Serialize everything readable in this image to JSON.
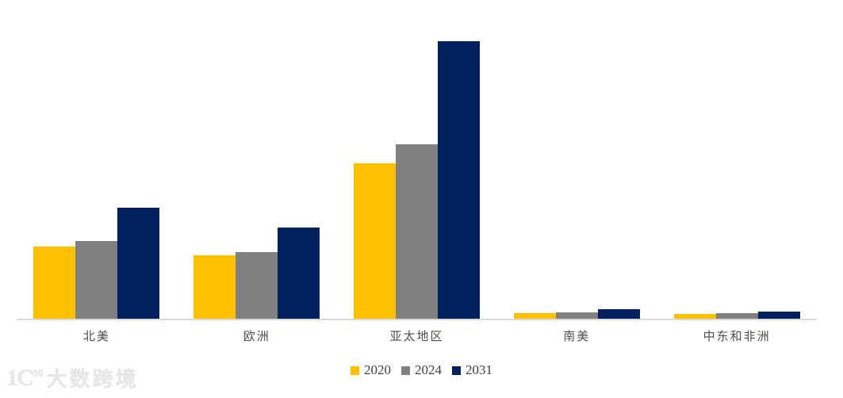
{
  "page": {
    "background": "#FFFFFF"
  },
  "chart_data": {
    "type": "bar",
    "title": "",
    "xlabel": "",
    "ylabel": "",
    "categories": [
      "北美",
      "欧洲",
      "亚太地区",
      "南美",
      "中东和非洲"
    ],
    "series": [
      {
        "name": "2020",
        "color": "#FFC000",
        "values": [
          26,
          23,
          56,
          2.0,
          1.6
        ]
      },
      {
        "name": "2024",
        "color": "#808080",
        "values": [
          28,
          24,
          63,
          2.2,
          2.0
        ]
      },
      {
        "name": "2031",
        "color": "#002060",
        "values": [
          40,
          33,
          100,
          3.5,
          2.7
        ]
      }
    ],
    "value_units": "relative (no numeric axis shown; 亚太地区 2031 = 100)",
    "ylim": [
      0,
      107
    ],
    "grid": false,
    "y_axis_visible": false,
    "baseline_color": "#D9D9D9",
    "legend_position": "bottom-center",
    "category_label_color": "#4D4D4D",
    "legend_text_color": "#3F3F3F"
  },
  "watermark": {
    "logo_text": "1C",
    "logo_sup": "00",
    "text": "大数跨境"
  }
}
